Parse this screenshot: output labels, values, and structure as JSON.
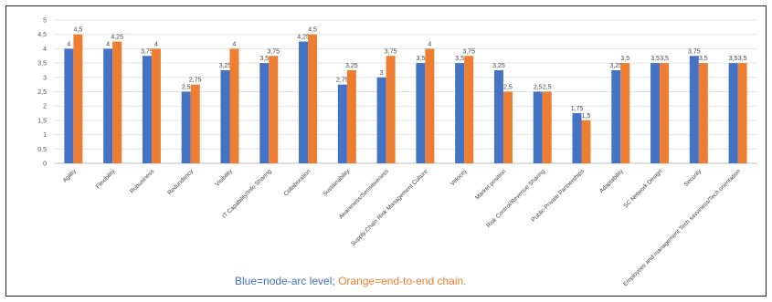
{
  "chart_data": {
    "type": "bar",
    "categories": [
      "Agility",
      "Flexibility",
      "Robustness",
      "Redundancy",
      "Visibility",
      "IT Capability/Info Sharing",
      "Collaboration",
      "Sustainability",
      "Awareness/Sensitiveness",
      "Supply Chain Risk Management Culture",
      "Velocity",
      "Market position",
      "Risk Control/Revenue Sharing",
      "Public-Private Partnerships",
      "Adaptability",
      "SC Network Design",
      "Security",
      "Employees and management Tech savviness/Tech orientation"
    ],
    "series": [
      {
        "values": [
          4,
          4,
          3.75,
          2.5,
          3.25,
          3.5,
          4.25,
          2.75,
          3,
          3.5,
          3.5,
          3.25,
          2.5,
          1.75,
          3.25,
          3.5,
          3.75,
          3.5
        ],
        "labels": [
          "4",
          "4",
          "3,75",
          "2,5",
          "3,25",
          "3,5",
          "4,25",
          "2,75",
          "3",
          "3,5",
          "3,5",
          "3,25",
          "2,5",
          "1,75",
          "3,25",
          "3,5",
          "3,75",
          "3,5"
        ]
      },
      {
        "values": [
          4.5,
          4.25,
          4,
          2.75,
          4,
          3.75,
          4.5,
          3.25,
          3.75,
          4,
          3.75,
          2.5,
          2.5,
          1.5,
          3.5,
          3.5,
          3.5,
          3.5
        ],
        "labels": [
          "4,5",
          "4,25",
          "4",
          "2,75",
          "4",
          "3,75",
          "4,5",
          "3,25",
          "3,75",
          "4",
          "3,75",
          "2,5",
          "2,5",
          "1,5",
          "3,5",
          "3,5",
          "3,5",
          "3,5"
        ]
      }
    ],
    "colors": [
      "#4472C4",
      "#ED7D31"
    ],
    "ylim": [
      0,
      5
    ],
    "yticks": [
      "0",
      "0,5",
      "1",
      "1,5",
      "2",
      "2,5",
      "3",
      "3,5",
      "4",
      "4,5",
      "5"
    ],
    "grid": true,
    "legend_text": {
      "blue": "Blue=node-arc level;",
      "orange": "Orange=end-to-end chain."
    }
  }
}
